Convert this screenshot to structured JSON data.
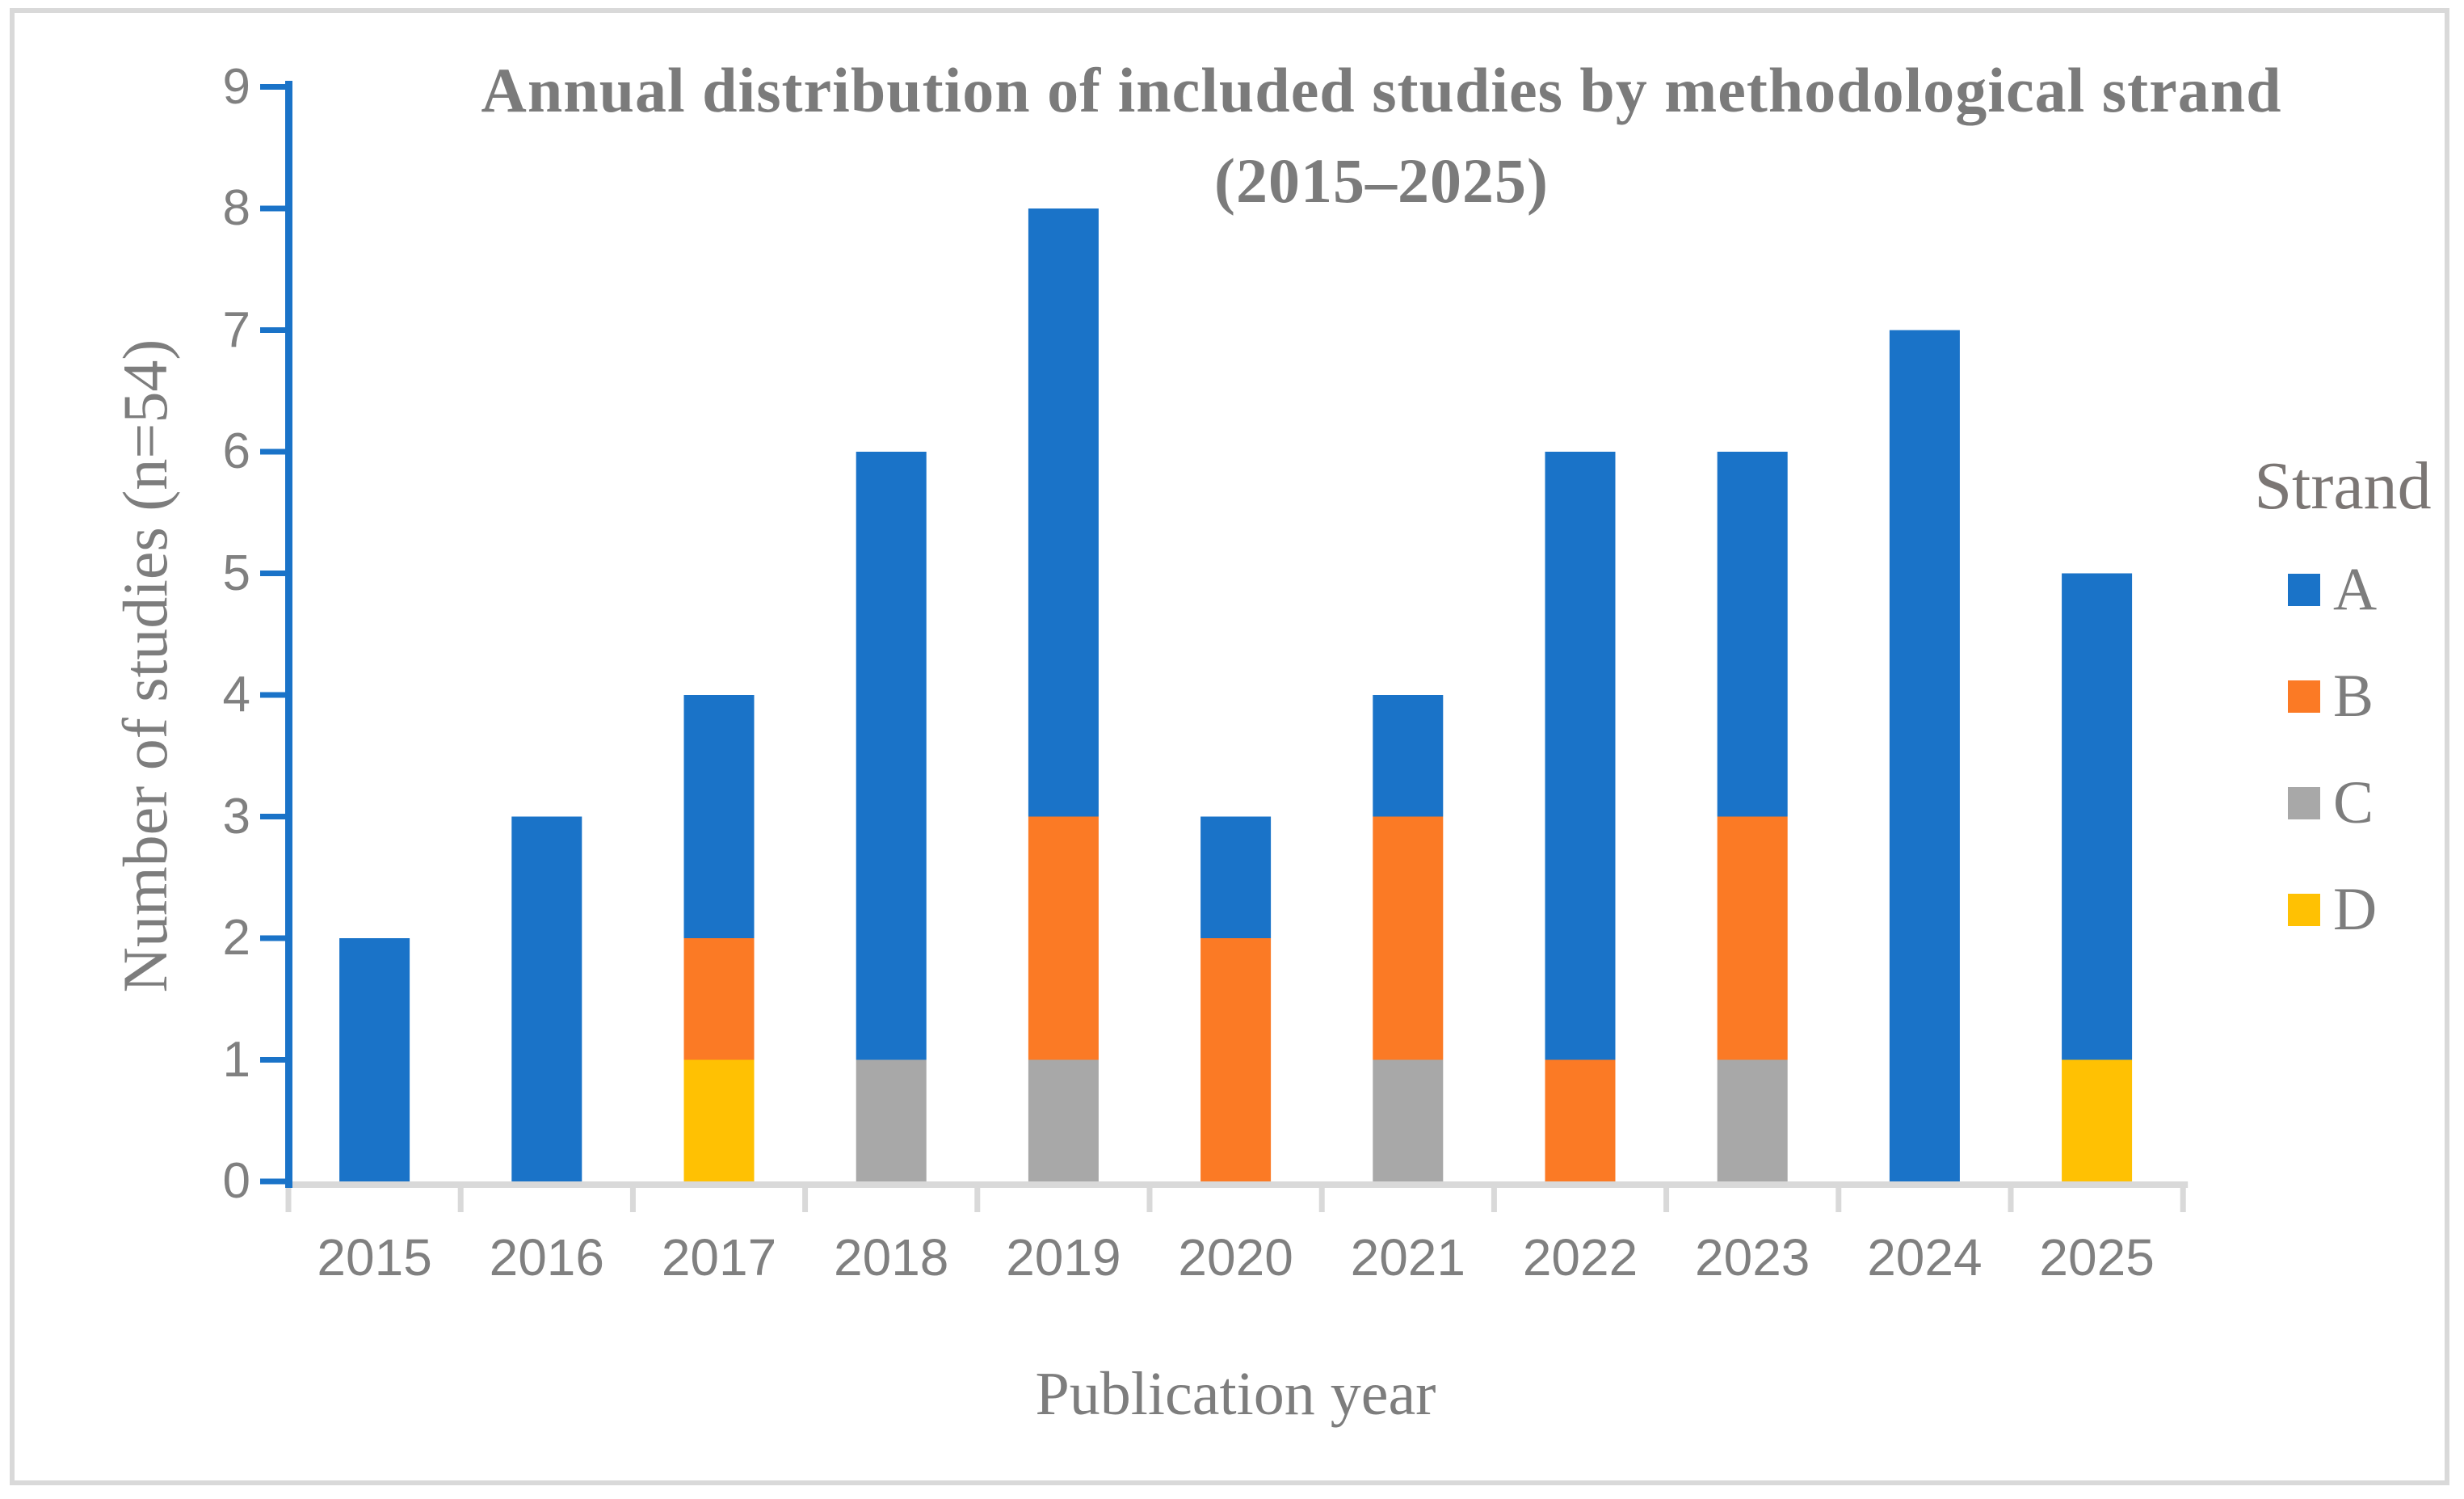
{
  "title": {
    "line1": "Annual distribution of included studies by methodological strand",
    "line2": "(2015–2025)"
  },
  "axes": {
    "x_label": "Publication year",
    "y_label": "Number of studies (n=54)",
    "y_ticks": [
      0,
      1,
      2,
      3,
      4,
      5,
      6,
      7,
      8,
      9
    ]
  },
  "legend": {
    "title": "Strand"
  },
  "colors": {
    "axis_line_blue": "#1A73C8",
    "axis_line_gray": "#D9D9D9",
    "figure_border_gray": "#D9D9D9",
    "text_gray": "#7D7D7D",
    "background": "#FFFFFF"
  },
  "chart_data": {
    "type": "bar",
    "stacked": true,
    "title": "Annual distribution of included studies by methodological strand (2015–2025)",
    "xlabel": "Publication year",
    "ylabel": "Number of studies (n=54)",
    "ylim": [
      0,
      9
    ],
    "grid": false,
    "legend_title": "Strand",
    "legend_position": "right",
    "categories": [
      "2015",
      "2016",
      "2017",
      "2018",
      "2019",
      "2020",
      "2021",
      "2022",
      "2023",
      "2024",
      "2025"
    ],
    "series": [
      {
        "name": "A",
        "color": "#1A73C8",
        "values": [
          2,
          3,
          2,
          5,
          5,
          1,
          1,
          5,
          3,
          7,
          4
        ]
      },
      {
        "name": "B",
        "color": "#FB7A25",
        "values": [
          0,
          0,
          1,
          0,
          2,
          2,
          2,
          1,
          2,
          0,
          0
        ]
      },
      {
        "name": "C",
        "color": "#A8A8A8",
        "values": [
          0,
          0,
          0,
          1,
          1,
          0,
          1,
          0,
          1,
          0,
          0
        ]
      },
      {
        "name": "D",
        "color": "#FFC103",
        "values": [
          0,
          0,
          1,
          0,
          0,
          0,
          0,
          0,
          0,
          0,
          1
        ]
      }
    ],
    "stack_order_bottom_to_top": [
      "D",
      "C",
      "B",
      "A"
    ],
    "totals_by_year": [
      2,
      3,
      4,
      6,
      8,
      3,
      4,
      6,
      6,
      7,
      5
    ],
    "total_n": 54
  }
}
